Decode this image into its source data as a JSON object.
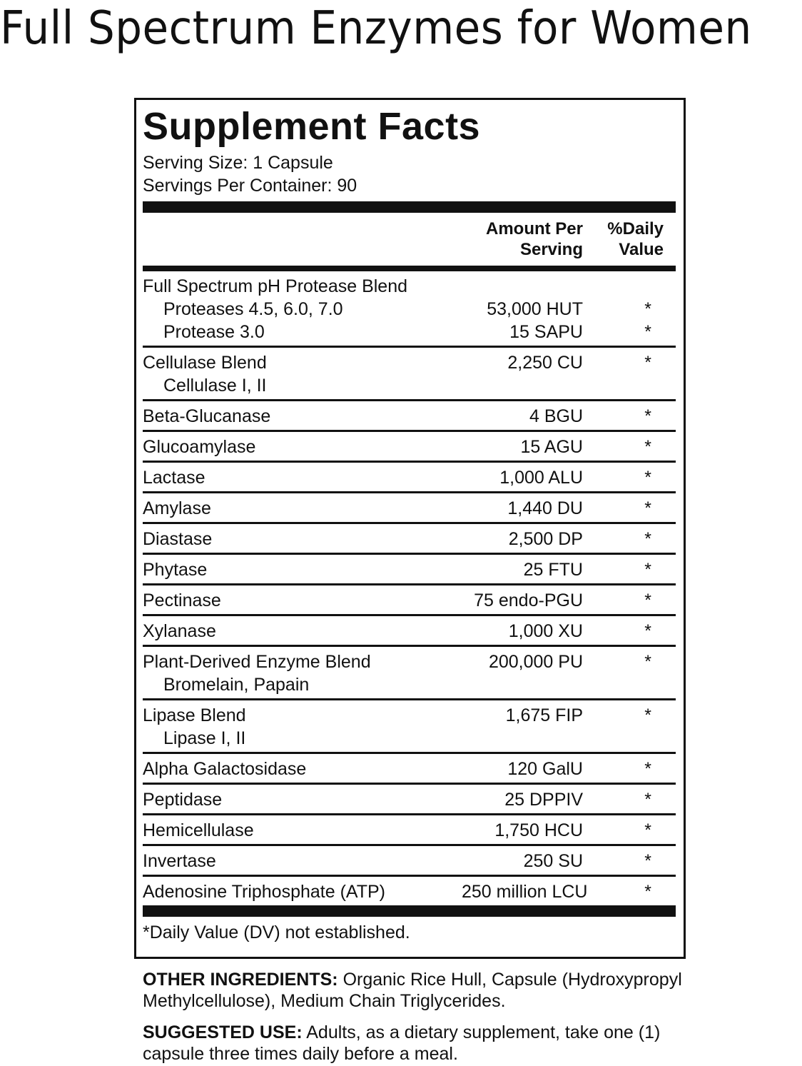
{
  "header": {
    "title": "Full Spectrum Enzymes for Women"
  },
  "facts": {
    "title": "Supplement Facts",
    "serving_size": "Serving Size: 1 Capsule",
    "servings_per_container": "Servings Per Container: 90",
    "amount_header": [
      "Amount Per",
      "Serving"
    ],
    "dv_header": [
      "%Daily",
      "Value"
    ],
    "groups": [
      {
        "name": "Full Spectrum pH Protease Blend",
        "sub": [
          {
            "name": "Proteases 4.5, 6.0, 7.0",
            "amount": "53,000 HUT",
            "dv": "*"
          },
          {
            "name": "Protease 3.0",
            "amount": "15 SAPU",
            "dv": "*"
          }
        ]
      },
      {
        "name": "Cellulase Blend",
        "amount": "2,250 CU",
        "dv": "*",
        "sub": [
          {
            "name": "Cellulase I, II"
          }
        ]
      },
      {
        "name": "Beta-Glucanase",
        "amount": "4 BGU",
        "dv": "*"
      },
      {
        "name": "Glucoamylase",
        "amount": "15 AGU",
        "dv": "*"
      },
      {
        "name": "Lactase",
        "amount": "1,000 ALU",
        "dv": "*"
      },
      {
        "name": "Amylase",
        "amount": "1,440 DU",
        "dv": "*"
      },
      {
        "name": "Diastase",
        "amount": "2,500 DP",
        "dv": "*"
      },
      {
        "name": "Phytase",
        "amount": "25 FTU",
        "dv": "*"
      },
      {
        "name": "Pectinase",
        "amount": "75 endo-PGU",
        "dv": "*"
      },
      {
        "name": "Xylanase",
        "amount": "1,000 XU",
        "dv": "*"
      },
      {
        "name": "Plant-Derived Enzyme Blend",
        "amount": "200,000 PU",
        "dv": "*",
        "sub": [
          {
            "name": "Bromelain, Papain"
          }
        ]
      },
      {
        "name": "Lipase Blend",
        "amount": "1,675 FIP",
        "dv": "*",
        "sub": [
          {
            "name": "Lipase I, II"
          }
        ]
      },
      {
        "name": "Alpha Galactosidase",
        "amount": "120 GalU",
        "dv": "*"
      },
      {
        "name": "Peptidase",
        "amount": "25 DPPIV",
        "dv": "*"
      },
      {
        "name": "Hemicellulase",
        "amount": "1,750 HCU",
        "dv": "*"
      },
      {
        "name": "Invertase",
        "amount": "250 SU",
        "dv": "*"
      },
      {
        "name": "Adenosine Triphosphate (ATP)",
        "amount": "250 million LCU",
        "dv": "*"
      }
    ],
    "footnote": "*Daily Value (DV) not established."
  },
  "other_ingredients": {
    "label": "OTHER INGREDIENTS:",
    "text": "Organic Rice Hull, Capsule (Hydroxypropyl Methylcellulose), Medium Chain Triglycerides."
  },
  "suggested_use": {
    "label": "SUGGESTED USE:",
    "text": "Adults, as a dietary supplement, take one (1) capsule three times daily before a meal."
  }
}
